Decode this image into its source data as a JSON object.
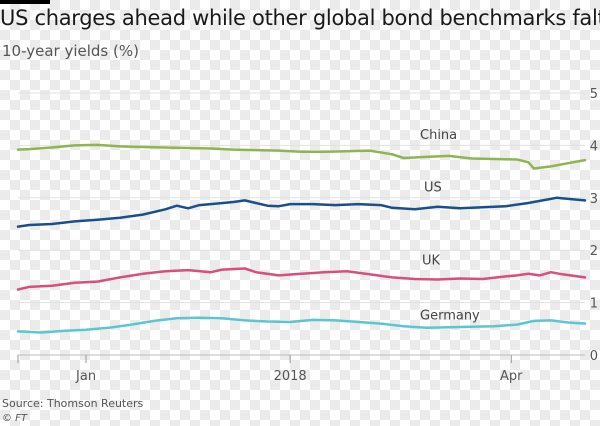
{
  "header": {
    "title": "US charges ahead while other global bond benchmarks falter",
    "subtitle": "10-year yields (%)"
  },
  "footer": {
    "source": "Source: Thomson Reuters",
    "credit": "© FT"
  },
  "chart_data": {
    "type": "line",
    "title": "US charges ahead while other global bond benchmarks falter",
    "subtitle": "10-year yields (%)",
    "xlabel": "",
    "ylabel": "",
    "ylim": [
      0,
      5
    ],
    "yticks": [
      "0",
      "1",
      "2",
      "3",
      "4",
      "5"
    ],
    "xticks": [
      {
        "label": "Jan",
        "x": 0.12
      },
      {
        "label": "2018",
        "x": 0.48
      },
      {
        "label": "Apr",
        "x": 0.87
      }
    ],
    "xlim": [
      0,
      1
    ],
    "grid": "horizontal",
    "legend": "inline labels",
    "series": [
      {
        "name": "China",
        "color": "#8fb550",
        "x": [
          0.0,
          0.02,
          0.06,
          0.1,
          0.14,
          0.18,
          0.22,
          0.26,
          0.3,
          0.34,
          0.38,
          0.42,
          0.46,
          0.5,
          0.54,
          0.58,
          0.62,
          0.66,
          0.68,
          0.72,
          0.76,
          0.8,
          0.84,
          0.88,
          0.9,
          0.91,
          0.94,
          0.97,
          1.0
        ],
        "values": [
          3.92,
          3.93,
          3.96,
          4.0,
          4.01,
          3.98,
          3.97,
          3.96,
          3.95,
          3.94,
          3.92,
          3.91,
          3.9,
          3.88,
          3.88,
          3.89,
          3.9,
          3.83,
          3.76,
          3.78,
          3.8,
          3.75,
          3.74,
          3.73,
          3.68,
          3.56,
          3.6,
          3.66,
          3.72
        ]
      },
      {
        "name": "US",
        "color": "#1a4f8c",
        "x": [
          0.0,
          0.02,
          0.06,
          0.1,
          0.14,
          0.18,
          0.22,
          0.26,
          0.28,
          0.3,
          0.32,
          0.34,
          0.38,
          0.4,
          0.44,
          0.46,
          0.48,
          0.52,
          0.56,
          0.6,
          0.64,
          0.66,
          0.7,
          0.74,
          0.78,
          0.82,
          0.86,
          0.9,
          0.93,
          0.95,
          0.98,
          1.0
        ],
        "values": [
          2.45,
          2.48,
          2.5,
          2.55,
          2.58,
          2.62,
          2.68,
          2.78,
          2.85,
          2.8,
          2.86,
          2.88,
          2.92,
          2.95,
          2.85,
          2.84,
          2.88,
          2.88,
          2.86,
          2.88,
          2.86,
          2.81,
          2.78,
          2.83,
          2.8,
          2.82,
          2.84,
          2.9,
          2.96,
          3.0,
          2.97,
          2.95
        ]
      },
      {
        "name": "UK",
        "color": "#d94e7f",
        "x": [
          0.0,
          0.02,
          0.06,
          0.1,
          0.14,
          0.18,
          0.22,
          0.26,
          0.3,
          0.34,
          0.36,
          0.4,
          0.42,
          0.46,
          0.5,
          0.54,
          0.58,
          0.62,
          0.66,
          0.7,
          0.74,
          0.78,
          0.82,
          0.86,
          0.88,
          0.9,
          0.92,
          0.94,
          0.96,
          1.0
        ],
        "values": [
          1.25,
          1.3,
          1.32,
          1.38,
          1.4,
          1.48,
          1.55,
          1.6,
          1.62,
          1.58,
          1.63,
          1.65,
          1.58,
          1.52,
          1.55,
          1.58,
          1.6,
          1.54,
          1.48,
          1.45,
          1.44,
          1.46,
          1.45,
          1.5,
          1.52,
          1.55,
          1.52,
          1.58,
          1.54,
          1.48
        ]
      },
      {
        "name": "Germany",
        "color": "#5cc6d0",
        "x": [
          0.0,
          0.04,
          0.08,
          0.12,
          0.16,
          0.2,
          0.24,
          0.28,
          0.32,
          0.36,
          0.4,
          0.44,
          0.48,
          0.52,
          0.56,
          0.6,
          0.64,
          0.68,
          0.72,
          0.76,
          0.8,
          0.84,
          0.88,
          0.91,
          0.94,
          0.97,
          1.0
        ],
        "values": [
          0.45,
          0.43,
          0.46,
          0.48,
          0.52,
          0.58,
          0.65,
          0.7,
          0.71,
          0.7,
          0.66,
          0.64,
          0.63,
          0.67,
          0.66,
          0.63,
          0.6,
          0.55,
          0.52,
          0.53,
          0.54,
          0.55,
          0.58,
          0.65,
          0.66,
          0.62,
          0.6
        ]
      }
    ],
    "annotations": [
      {
        "text": "China",
        "series": "China"
      },
      {
        "text": "US",
        "series": "US"
      },
      {
        "text": "UK",
        "series": "UK"
      },
      {
        "text": "Germany",
        "series": "Germany"
      }
    ]
  }
}
